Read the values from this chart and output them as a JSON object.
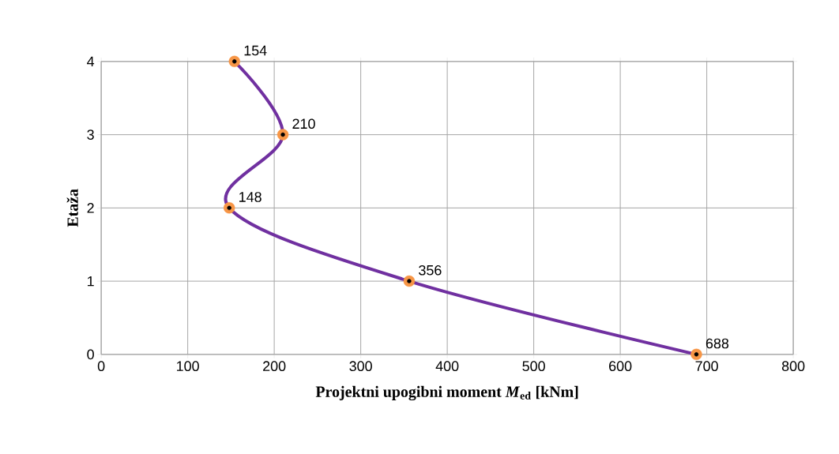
{
  "chart_data": {
    "type": "line",
    "xlabel": "Projektni upogibni moment *M*$_{ed}$ [kNm]",
    "ylabel": "Etaža",
    "x": [
      688,
      356,
      148,
      210,
      154
    ],
    "series": [
      {
        "color": "#7030a0",
        "values": [
          0,
          1,
          2,
          3,
          4
        ]
      }
    ],
    "annotations": [
      {
        "text": "688",
        "x": 688,
        "y": 0
      },
      {
        "text": "356",
        "x": 356,
        "y": 1
      },
      {
        "text": "148",
        "x": 148,
        "y": 2
      },
      {
        "text": "210",
        "x": 210,
        "y": 3
      },
      {
        "text": "154",
        "x": 154,
        "y": 4
      }
    ],
    "xlim": [
      0,
      800
    ],
    "xticks": [
      0,
      100,
      200,
      300,
      400,
      500,
      600,
      700,
      800
    ],
    "ylim": [
      0,
      4
    ],
    "yticks": [
      0,
      1,
      2,
      3,
      4
    ],
    "grid": true,
    "marker": "circle",
    "line_style": "solid"
  }
}
